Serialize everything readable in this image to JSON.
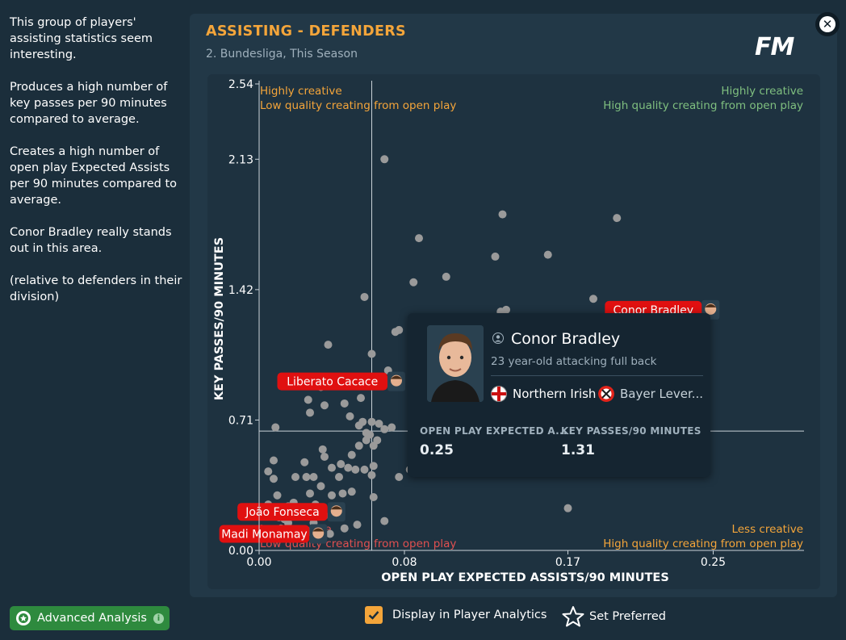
{
  "sidebar": {
    "paragraphs": [
      "This group of players' assisting statistics seem interesting.",
      "Produces a high number of key passes per 90 minutes compared to average.",
      "Creates a high number of open play Expected Assists per 90 minutes compared to average.",
      "Conor Bradley really stands out in this area.",
      "(relative to defenders in their division)"
    ]
  },
  "header": {
    "title": "ASSISTING - DEFENDERS",
    "subtitle": "2. Bundesliga, This Season",
    "logo": "FM"
  },
  "tooltip": {
    "name": "Conor Bradley",
    "description": "23 year-old attacking full back",
    "nationality": "Northern Irish",
    "club": "Bayer Lever...",
    "stats": [
      {
        "label": "OPEN PLAY EXPECTED A...",
        "value": "0.25"
      },
      {
        "label": "KEY PASSES/90 MINUTES",
        "value": "1.31"
      }
    ]
  },
  "footer": {
    "advanced_label": "Advanced Analysis",
    "display_label": "Display in Player Analytics",
    "display_checked": true,
    "preferred_label": "Set Preferred"
  },
  "colors": {
    "accent": "#f4a53a",
    "positive": "#7fbf7f",
    "negative": "#e05050",
    "label_bg": "#e01010",
    "dot": "#9a9a9a",
    "button": "#2e8a3e"
  },
  "chart_data": {
    "type": "scatter",
    "title": "ASSISTING - DEFENDERS",
    "xlabel": "OPEN PLAY EXPECTED ASSISTS/90 MINUTES",
    "ylabel": "KEY PASSES/90 MINUTES",
    "xlim": [
      0,
      0.3
    ],
    "ylim": [
      0,
      2.54
    ],
    "x_ticks": [
      0.0,
      0.08,
      0.17,
      0.25
    ],
    "x_tick_labels": [
      "0.00",
      "0.08",
      "0.17",
      "0.25"
    ],
    "y_ticks": [
      0.0,
      0.71,
      1.42,
      2.13,
      2.54
    ],
    "y_tick_labels": [
      "0.00",
      "0.71",
      "1.42",
      "2.13",
      "2.54"
    ],
    "x_avg": 0.062,
    "y_avg": 0.65,
    "quadrants": {
      "top_left": [
        "Highly creative",
        "Low quality creating from open play"
      ],
      "top_right": [
        "Highly creative",
        "High quality creating from open play"
      ],
      "bottom_left": [
        "Less creative",
        "Low quality creating from open play"
      ],
      "bottom_right": [
        "Less creative",
        "High quality creating from open play"
      ]
    },
    "highlighted": [
      {
        "name": "Conor Bradley",
        "x": 0.249,
        "y": 1.31
      },
      {
        "name": "Liberato Cacace",
        "x": 0.076,
        "y": 0.92
      },
      {
        "name": "João Fonseca",
        "x": 0.043,
        "y": 0.21
      },
      {
        "name": "Madi Monamay",
        "x": 0.033,
        "y": 0.09
      }
    ],
    "points": [
      {
        "x": 0.069,
        "y": 2.13
      },
      {
        "x": 0.134,
        "y": 1.83
      },
      {
        "x": 0.197,
        "y": 1.81
      },
      {
        "x": 0.088,
        "y": 1.7
      },
      {
        "x": 0.13,
        "y": 1.6
      },
      {
        "x": 0.159,
        "y": 1.61
      },
      {
        "x": 0.103,
        "y": 1.49
      },
      {
        "x": 0.085,
        "y": 1.46
      },
      {
        "x": 0.058,
        "y": 1.38
      },
      {
        "x": 0.184,
        "y": 1.37
      },
      {
        "x": 0.136,
        "y": 1.31
      },
      {
        "x": 0.133,
        "y": 1.3
      },
      {
        "x": 0.075,
        "y": 1.19
      },
      {
        "x": 0.077,
        "y": 1.2
      },
      {
        "x": 0.038,
        "y": 1.12
      },
      {
        "x": 0.062,
        "y": 1.07
      },
      {
        "x": 0.071,
        "y": 0.98
      },
      {
        "x": 0.034,
        "y": 0.89
      },
      {
        "x": 0.027,
        "y": 0.82
      },
      {
        "x": 0.056,
        "y": 0.83
      },
      {
        "x": 0.036,
        "y": 0.79
      },
      {
        "x": 0.047,
        "y": 0.8
      },
      {
        "x": 0.028,
        "y": 0.75
      },
      {
        "x": 0.05,
        "y": 0.73
      },
      {
        "x": 0.057,
        "y": 0.7
      },
      {
        "x": 0.062,
        "y": 0.7
      },
      {
        "x": 0.066,
        "y": 0.69
      },
      {
        "x": 0.009,
        "y": 0.67
      },
      {
        "x": 0.055,
        "y": 0.68
      },
      {
        "x": 0.073,
        "y": 0.67
      },
      {
        "x": 0.059,
        "y": 0.64
      },
      {
        "x": 0.061,
        "y": 0.63
      },
      {
        "x": 0.069,
        "y": 0.66
      },
      {
        "x": 0.059,
        "y": 0.6
      },
      {
        "x": 0.055,
        "y": 0.57
      },
      {
        "x": 0.063,
        "y": 0.57
      },
      {
        "x": 0.065,
        "y": 0.6
      },
      {
        "x": 0.035,
        "y": 0.55
      },
      {
        "x": 0.008,
        "y": 0.49
      },
      {
        "x": 0.036,
        "y": 0.51
      },
      {
        "x": 0.051,
        "y": 0.52
      },
      {
        "x": 0.025,
        "y": 0.48
      },
      {
        "x": 0.045,
        "y": 0.47
      },
      {
        "x": 0.049,
        "y": 0.45
      },
      {
        "x": 0.063,
        "y": 0.46
      },
      {
        "x": 0.053,
        "y": 0.44
      },
      {
        "x": 0.005,
        "y": 0.43
      },
      {
        "x": 0.04,
        "y": 0.45
      },
      {
        "x": 0.058,
        "y": 0.44
      },
      {
        "x": 0.026,
        "y": 0.4
      },
      {
        "x": 0.03,
        "y": 0.4
      },
      {
        "x": 0.008,
        "y": 0.39
      },
      {
        "x": 0.02,
        "y": 0.4
      },
      {
        "x": 0.044,
        "y": 0.4
      },
      {
        "x": 0.062,
        "y": 0.41
      },
      {
        "x": 0.077,
        "y": 0.4
      },
      {
        "x": 0.034,
        "y": 0.35
      },
      {
        "x": 0.028,
        "y": 0.31
      },
      {
        "x": 0.04,
        "y": 0.3
      },
      {
        "x": 0.046,
        "y": 0.31
      },
      {
        "x": 0.051,
        "y": 0.32
      },
      {
        "x": 0.01,
        "y": 0.3
      },
      {
        "x": 0.063,
        "y": 0.29
      },
      {
        "x": 0.005,
        "y": 0.25
      },
      {
        "x": 0.016,
        "y": 0.24
      },
      {
        "x": 0.019,
        "y": 0.26
      },
      {
        "x": 0.031,
        "y": 0.25
      },
      {
        "x": 0.026,
        "y": 0.2
      },
      {
        "x": 0.036,
        "y": 0.19
      },
      {
        "x": 0.011,
        "y": 0.18
      },
      {
        "x": 0.014,
        "y": 0.17
      },
      {
        "x": 0.021,
        "y": 0.19
      },
      {
        "x": 0.006,
        "y": 0.19
      },
      {
        "x": 0.016,
        "y": 0.15
      },
      {
        "x": 0.03,
        "y": 0.15
      },
      {
        "x": 0.012,
        "y": 0.12
      },
      {
        "x": 0.003,
        "y": 0.11
      },
      {
        "x": 0.02,
        "y": 0.08
      },
      {
        "x": 0.028,
        "y": 0.1
      },
      {
        "x": 0.039,
        "y": 0.09
      },
      {
        "x": 0.047,
        "y": 0.12
      },
      {
        "x": 0.054,
        "y": 0.14
      },
      {
        "x": 0.069,
        "y": 0.16
      },
      {
        "x": 0.17,
        "y": 0.23
      },
      {
        "x": 0.09,
        "y": 0.7
      },
      {
        "x": 0.083,
        "y": 0.44
      }
    ]
  }
}
